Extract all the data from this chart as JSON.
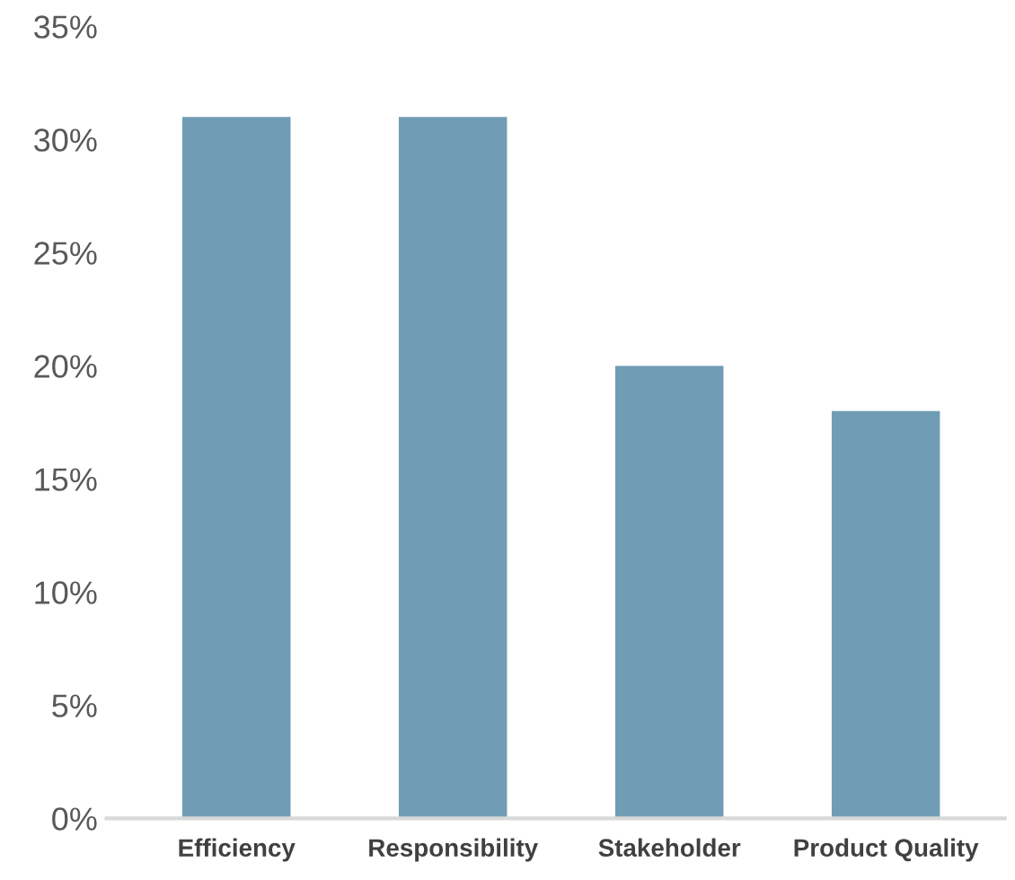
{
  "chart_data": {
    "type": "bar",
    "categories": [
      "Efficiency",
      "Responsibility",
      "Stakeholder",
      "Product Quality"
    ],
    "values": [
      31,
      31,
      20,
      18
    ],
    "color": "#709db5",
    "ylim": [
      0,
      35
    ],
    "yticks": [
      {
        "value": 0,
        "label": "0%"
      },
      {
        "value": 5,
        "label": "5%"
      },
      {
        "value": 10,
        "label": "10%"
      },
      {
        "value": 15,
        "label": "15%"
      },
      {
        "value": 20,
        "label": "20%"
      },
      {
        "value": 25,
        "label": "25%"
      },
      {
        "value": 30,
        "label": "30%"
      },
      {
        "value": 35,
        "label": "35%"
      }
    ],
    "grid": false
  }
}
